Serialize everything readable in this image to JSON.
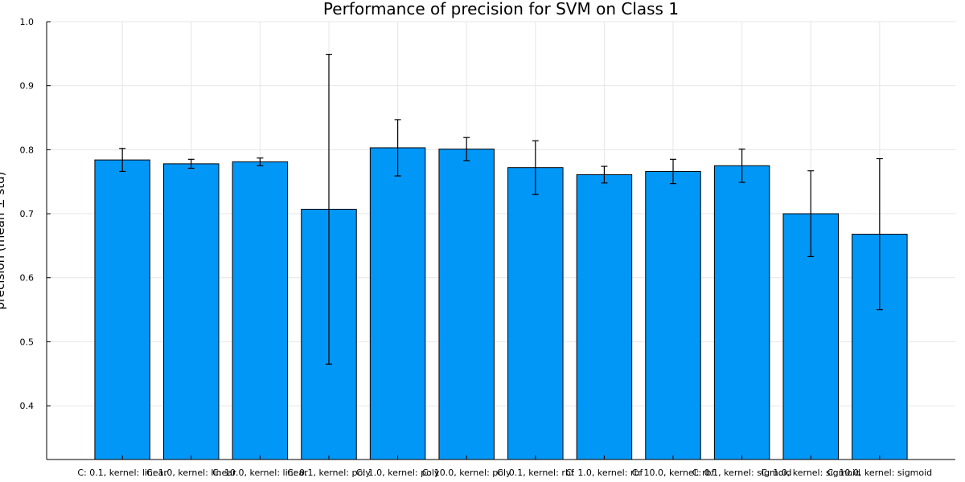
{
  "chart_data": {
    "type": "bar",
    "title": "Performance of precision for SVM on Class 1",
    "xlabel": "",
    "ylabel": "precision (mean ± std)",
    "ylim": [
      0.316,
      1.0
    ],
    "yticks": [
      0.4,
      0.5,
      0.6,
      0.7,
      0.8,
      0.9,
      1.0
    ],
    "ytick_labels": [
      "0.4",
      "0.5",
      "0.6",
      "0.7",
      "0.8",
      "0.9",
      "1.0"
    ],
    "grid": true,
    "legend": "none",
    "bar_color": "#0097f7",
    "categories": [
      "C: 0.1, kernel: linear",
      "C: 1.0, kernel: linear",
      "C: 10.0, kernel: linear",
      "C: 0.1, kernel: poly",
      "C: 1.0, kernel: poly",
      "C: 10.0, kernel: poly",
      "C: 0.1, kernel: rbf",
      "C: 1.0, kernel: rbf",
      "C: 10.0, kernel: rbf",
      "C: 0.1, kernel: sigmoid",
      "C: 1.0, kernel: sigmoid",
      "C: 10.0, kernel: sigmoid"
    ],
    "values": [
      0.784,
      0.778,
      0.781,
      0.707,
      0.803,
      0.801,
      0.772,
      0.761,
      0.766,
      0.775,
      0.7,
      0.668
    ],
    "errors": [
      0.018,
      0.007,
      0.006,
      0.242,
      0.044,
      0.018,
      0.042,
      0.013,
      0.019,
      0.026,
      0.067,
      0.118
    ]
  }
}
